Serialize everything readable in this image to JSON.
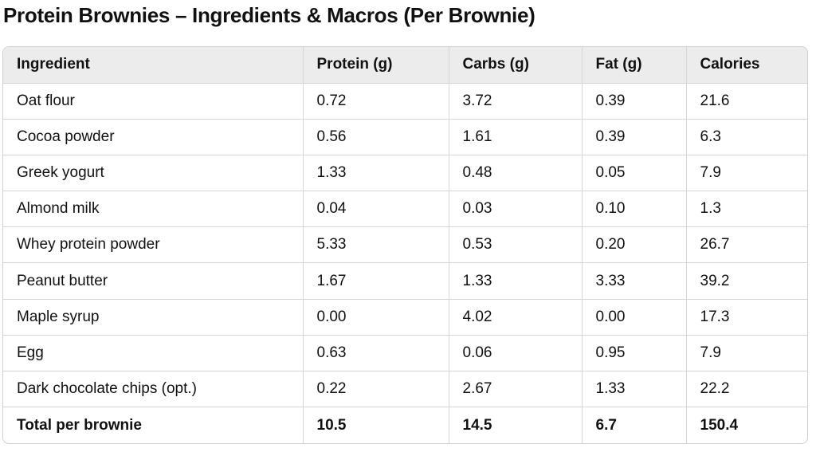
{
  "title": "Protein Brownies – Ingredients & Macros (Per Brownie)",
  "table": {
    "headers": [
      "Ingredient",
      "Protein (g)",
      "Carbs (g)",
      "Fat (g)",
      "Calories"
    ],
    "rows": [
      [
        "Oat flour",
        "0.72",
        "3.72",
        "0.39",
        "21.6"
      ],
      [
        "Cocoa powder",
        "0.56",
        "1.61",
        "0.39",
        "6.3"
      ],
      [
        "Greek yogurt",
        "1.33",
        "0.48",
        "0.05",
        "7.9"
      ],
      [
        "Almond milk",
        "0.04",
        "0.03",
        "0.10",
        "1.3"
      ],
      [
        "Whey protein powder",
        "5.33",
        "0.53",
        "0.20",
        "26.7"
      ],
      [
        "Peanut butter",
        "1.67",
        "1.33",
        "3.33",
        "39.2"
      ],
      [
        "Maple syrup",
        "0.00",
        "4.02",
        "0.00",
        "17.3"
      ],
      [
        "Egg",
        "0.63",
        "0.06",
        "0.95",
        "7.9"
      ],
      [
        "Dark chocolate chips (opt.)",
        "0.22",
        "2.67",
        "1.33",
        "22.2"
      ]
    ],
    "total": [
      "Total per brownie",
      "10.5",
      "14.5",
      "6.7",
      "150.4"
    ]
  }
}
